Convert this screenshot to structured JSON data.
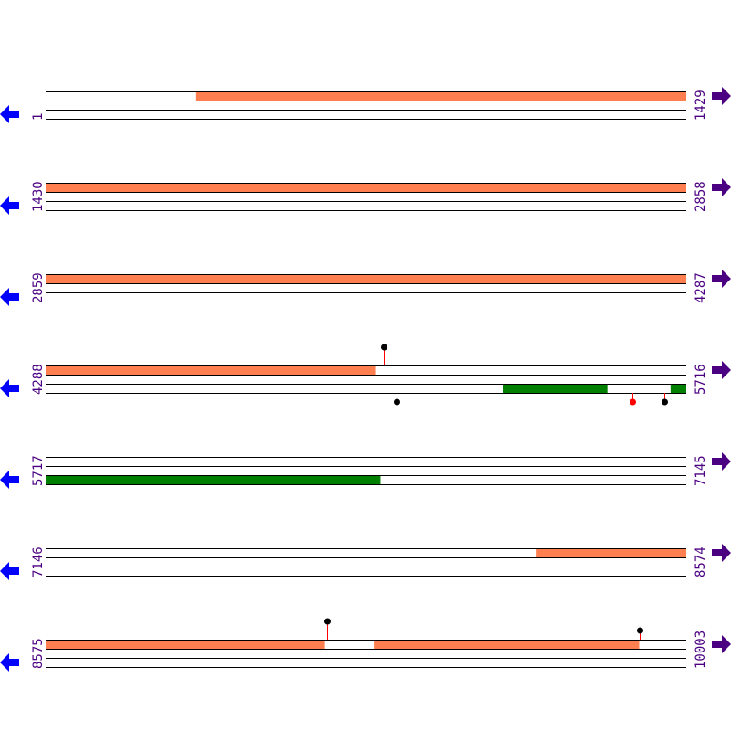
{
  "colors": {
    "forward_feature": "#ff7f50",
    "reverse_feature": "#008000",
    "line": "#000000",
    "left_arrow": "#0000ff",
    "right_arrow": "#4b0082",
    "label": "#4b0082",
    "marker_stem": "#ff0000",
    "marker_black": "#000000",
    "marker_red": "#ff0000"
  },
  "icons": {
    "left": "arrow-left-icon",
    "right": "arrow-right-icon"
  },
  "rows": [
    {
      "start": "1",
      "end": "1429",
      "s": 1,
      "e": 1429,
      "features": [
        {
          "strand": "forward",
          "from": 335,
          "to": 1429
        }
      ],
      "markers": []
    },
    {
      "start": "1430",
      "end": "2858",
      "s": 1430,
      "e": 2858,
      "features": [
        {
          "strand": "forward",
          "from": 1430,
          "to": 2858
        }
      ],
      "markers": []
    },
    {
      "start": "2859",
      "end": "4287",
      "s": 2859,
      "e": 4287,
      "features": [
        {
          "strand": "forward",
          "from": 2859,
          "to": 4287
        }
      ],
      "markers": []
    },
    {
      "start": "4288",
      "end": "5716",
      "s": 4288,
      "e": 5716,
      "features": [
        {
          "strand": "forward",
          "from": 4288,
          "to": 5022
        },
        {
          "strand": "reverse",
          "from": 5309,
          "to": 5540
        },
        {
          "strand": "reverse",
          "from": 5682,
          "to": 5716
        }
      ],
      "markers": [
        {
          "pos": 5042,
          "strand": "forward",
          "color": "black",
          "stem": "long"
        },
        {
          "pos": 5071,
          "strand": "reverse",
          "color": "black",
          "stem": "short"
        },
        {
          "pos": 5597,
          "strand": "reverse",
          "color": "red",
          "stem": "short"
        },
        {
          "pos": 5668,
          "strand": "reverse",
          "color": "black",
          "stem": "short"
        }
      ]
    },
    {
      "start": "5717",
      "end": "7145",
      "s": 5717,
      "e": 7145,
      "features": [
        {
          "strand": "reverse",
          "from": 5717,
          "to": 6463
        }
      ],
      "markers": []
    },
    {
      "start": "7146",
      "end": "8574",
      "s": 7146,
      "e": 8574,
      "features": [
        {
          "strand": "forward",
          "from": 8241,
          "to": 8574
        }
      ],
      "markers": []
    },
    {
      "start": "8575",
      "end": "10003",
      "s": 8575,
      "e": 10003,
      "features": [
        {
          "strand": "forward",
          "from": 8575,
          "to": 9197
        },
        {
          "strand": "forward",
          "from": 9307,
          "to": 9898
        }
      ],
      "markers": [
        {
          "pos": 9203,
          "strand": "forward",
          "color": "black",
          "stem": "long"
        },
        {
          "pos": 9900,
          "strand": "forward",
          "color": "black",
          "stem": "short"
        }
      ]
    }
  ]
}
